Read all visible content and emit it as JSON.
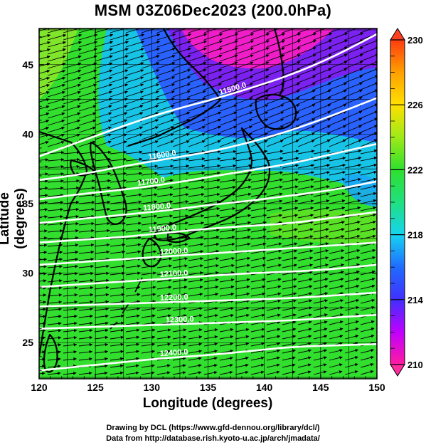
{
  "title": "MSM 03Z06Dec2023 (200.0hPa)",
  "chart_data": {
    "type": "heatmap",
    "title": "MSM 03Z06Dec2023 (200.0hPa)",
    "xlabel": "Longitude (degrees)",
    "ylabel": "Latitude  (degrees)",
    "xlim": [
      120,
      150
    ],
    "ylim": [
      22.4,
      47.6
    ],
    "x_ticks": [
      120,
      125,
      130,
      135,
      140,
      145,
      150
    ],
    "y_ticks": [
      25,
      30,
      35,
      40,
      45
    ],
    "grid": true,
    "colorbar": {
      "range": [
        210,
        230
      ],
      "ticks": [
        210,
        214,
        218,
        222,
        226,
        230
      ],
      "colors": [
        "#ff1ca0",
        "#c000ff",
        "#4030ff",
        "#1f6cff",
        "#16d4f0",
        "#20e080",
        "#2ee02e",
        "#9eea18",
        "#ffe000",
        "#ffa000",
        "#ff3c10"
      ]
    },
    "contours": [
      {
        "label": "11500.0",
        "value": 11500,
        "lats": [
          38.4,
          39.5,
          40.6,
          41.6,
          42.4,
          43.3,
          44.3,
          45.6,
          47.2
        ]
      },
      {
        "label": "11600.0",
        "value": 11600,
        "lats": [
          36.7,
          37.1,
          37.7,
          38.2,
          38.7,
          39.4,
          40.3,
          41.4,
          42.6
        ]
      },
      {
        "label": "11700.0",
        "value": 11700,
        "lats": [
          35.3,
          35.7,
          36.0,
          36.4,
          36.9,
          37.4,
          37.9,
          38.6,
          39.3
        ]
      },
      {
        "label": "11800.0",
        "value": 11800,
        "lats": [
          33.6,
          33.9,
          34.2,
          34.5,
          34.9,
          35.2,
          35.6,
          36.0,
          36.6
        ]
      },
      {
        "label": "11900.0",
        "value": 11900,
        "lats": [
          32.2,
          32.4,
          32.6,
          32.9,
          33.2,
          33.4,
          33.6,
          34.0,
          34.4
        ]
      },
      {
        "label": "12000.0",
        "value": 12000,
        "lats": [
          30.6,
          30.8,
          31.0,
          31.2,
          31.4,
          31.6,
          31.8,
          32.0,
          32.2
        ]
      },
      {
        "label": "12100.0",
        "value": 12100,
        "lats": [
          29.0,
          29.2,
          29.4,
          29.6,
          29.8,
          30.0,
          30.1,
          30.3,
          30.6
        ]
      },
      {
        "label": "12200.0",
        "value": 12200,
        "lats": [
          27.6,
          27.7,
          27.8,
          27.9,
          28.0,
          28.1,
          28.2,
          28.4,
          28.6
        ]
      },
      {
        "label": "12300.0",
        "value": 12300,
        "lats": [
          26.0,
          26.1,
          26.2,
          26.3,
          26.4,
          26.5,
          26.6,
          26.8,
          27.0
        ]
      },
      {
        "label": "12400.0",
        "value": 12400,
        "lats": [
          23.0,
          23.3,
          23.6,
          23.9,
          24.1,
          24.4,
          24.7,
          24.8,
          24.9
        ]
      }
    ],
    "contour_lons": [
      120,
      123.75,
      127.5,
      131.25,
      135,
      138.75,
      142.5,
      146.25,
      150
    ],
    "contour_label_lons": [
      137.3,
      131.0,
      130.0,
      130.5,
      131.0,
      132.0,
      132.0,
      132.0,
      132.5,
      132.0
    ]
  },
  "credit_line1": "Drawing by DCL (https://www.gfd-dennou.org/library/dcl/)",
  "credit_line2": "Data from http://database.rish.kyoto-u.ac.jp/arch/jmadata/"
}
